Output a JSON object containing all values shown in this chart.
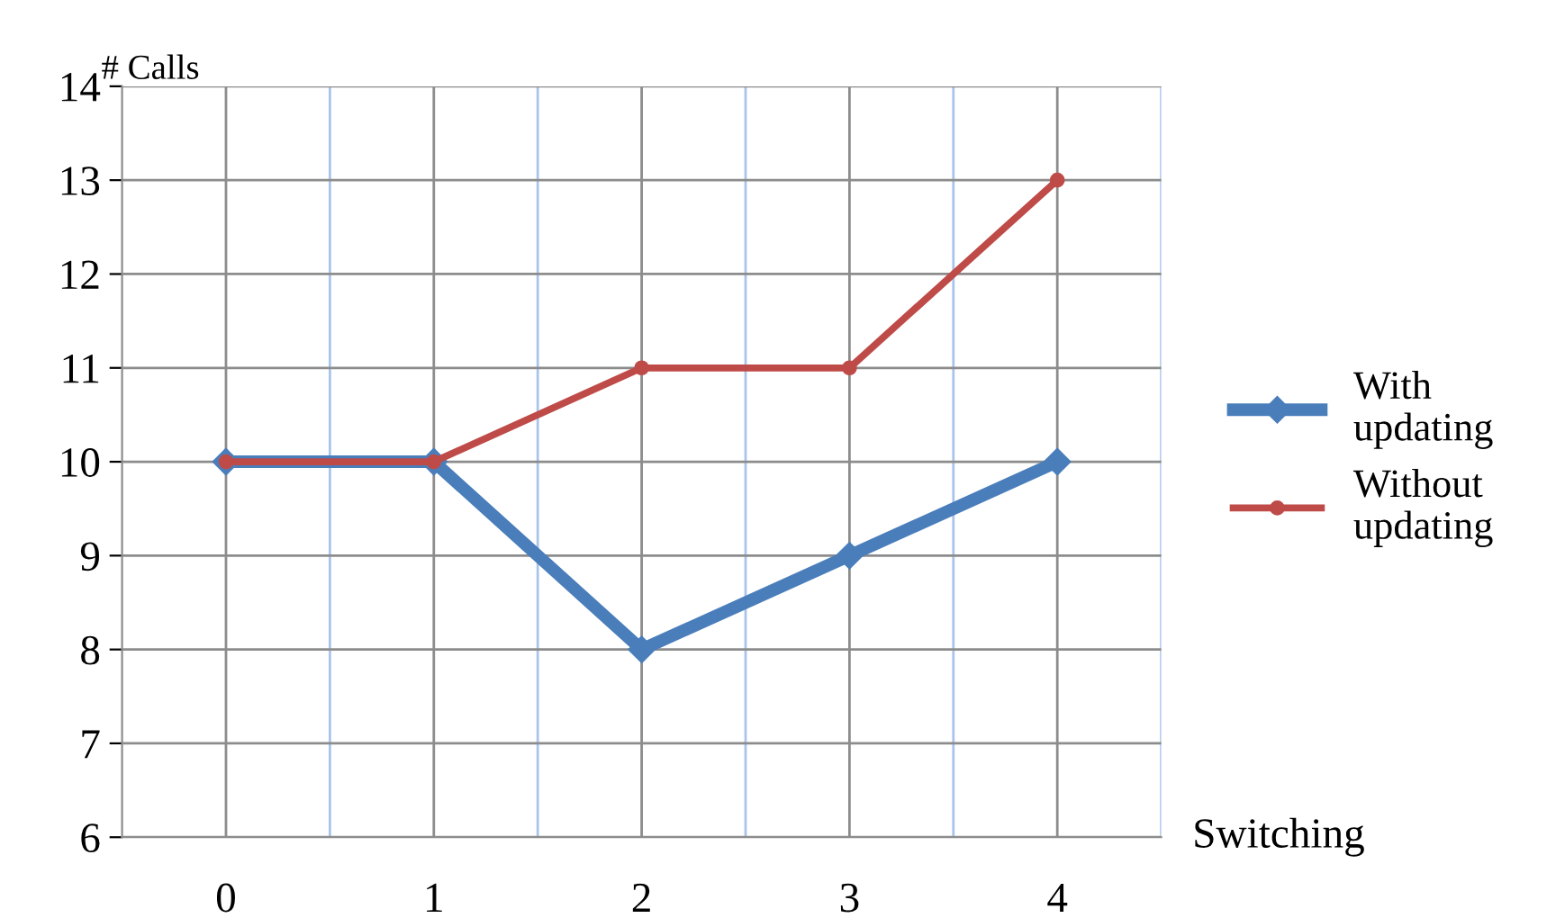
{
  "chart_data": {
    "type": "line",
    "xlabel": "Switching",
    "ylabel": "# Calls",
    "categories": [
      "0",
      "1",
      "2",
      "3",
      "4"
    ],
    "series": [
      {
        "name": "With updating",
        "color": "#4a7ebb",
        "values": [
          10,
          10,
          8,
          9,
          10
        ],
        "marker": "diamond"
      },
      {
        "name": "Without updating",
        "color": "#be4b48",
        "values": [
          10,
          10,
          11,
          11,
          13
        ],
        "marker": "circle"
      }
    ],
    "ylim": [
      6,
      14
    ],
    "yticks": [
      6,
      7,
      8,
      9,
      10,
      11,
      12,
      13,
      14
    ],
    "grid": true,
    "legend": "right",
    "line_style": "solid"
  }
}
